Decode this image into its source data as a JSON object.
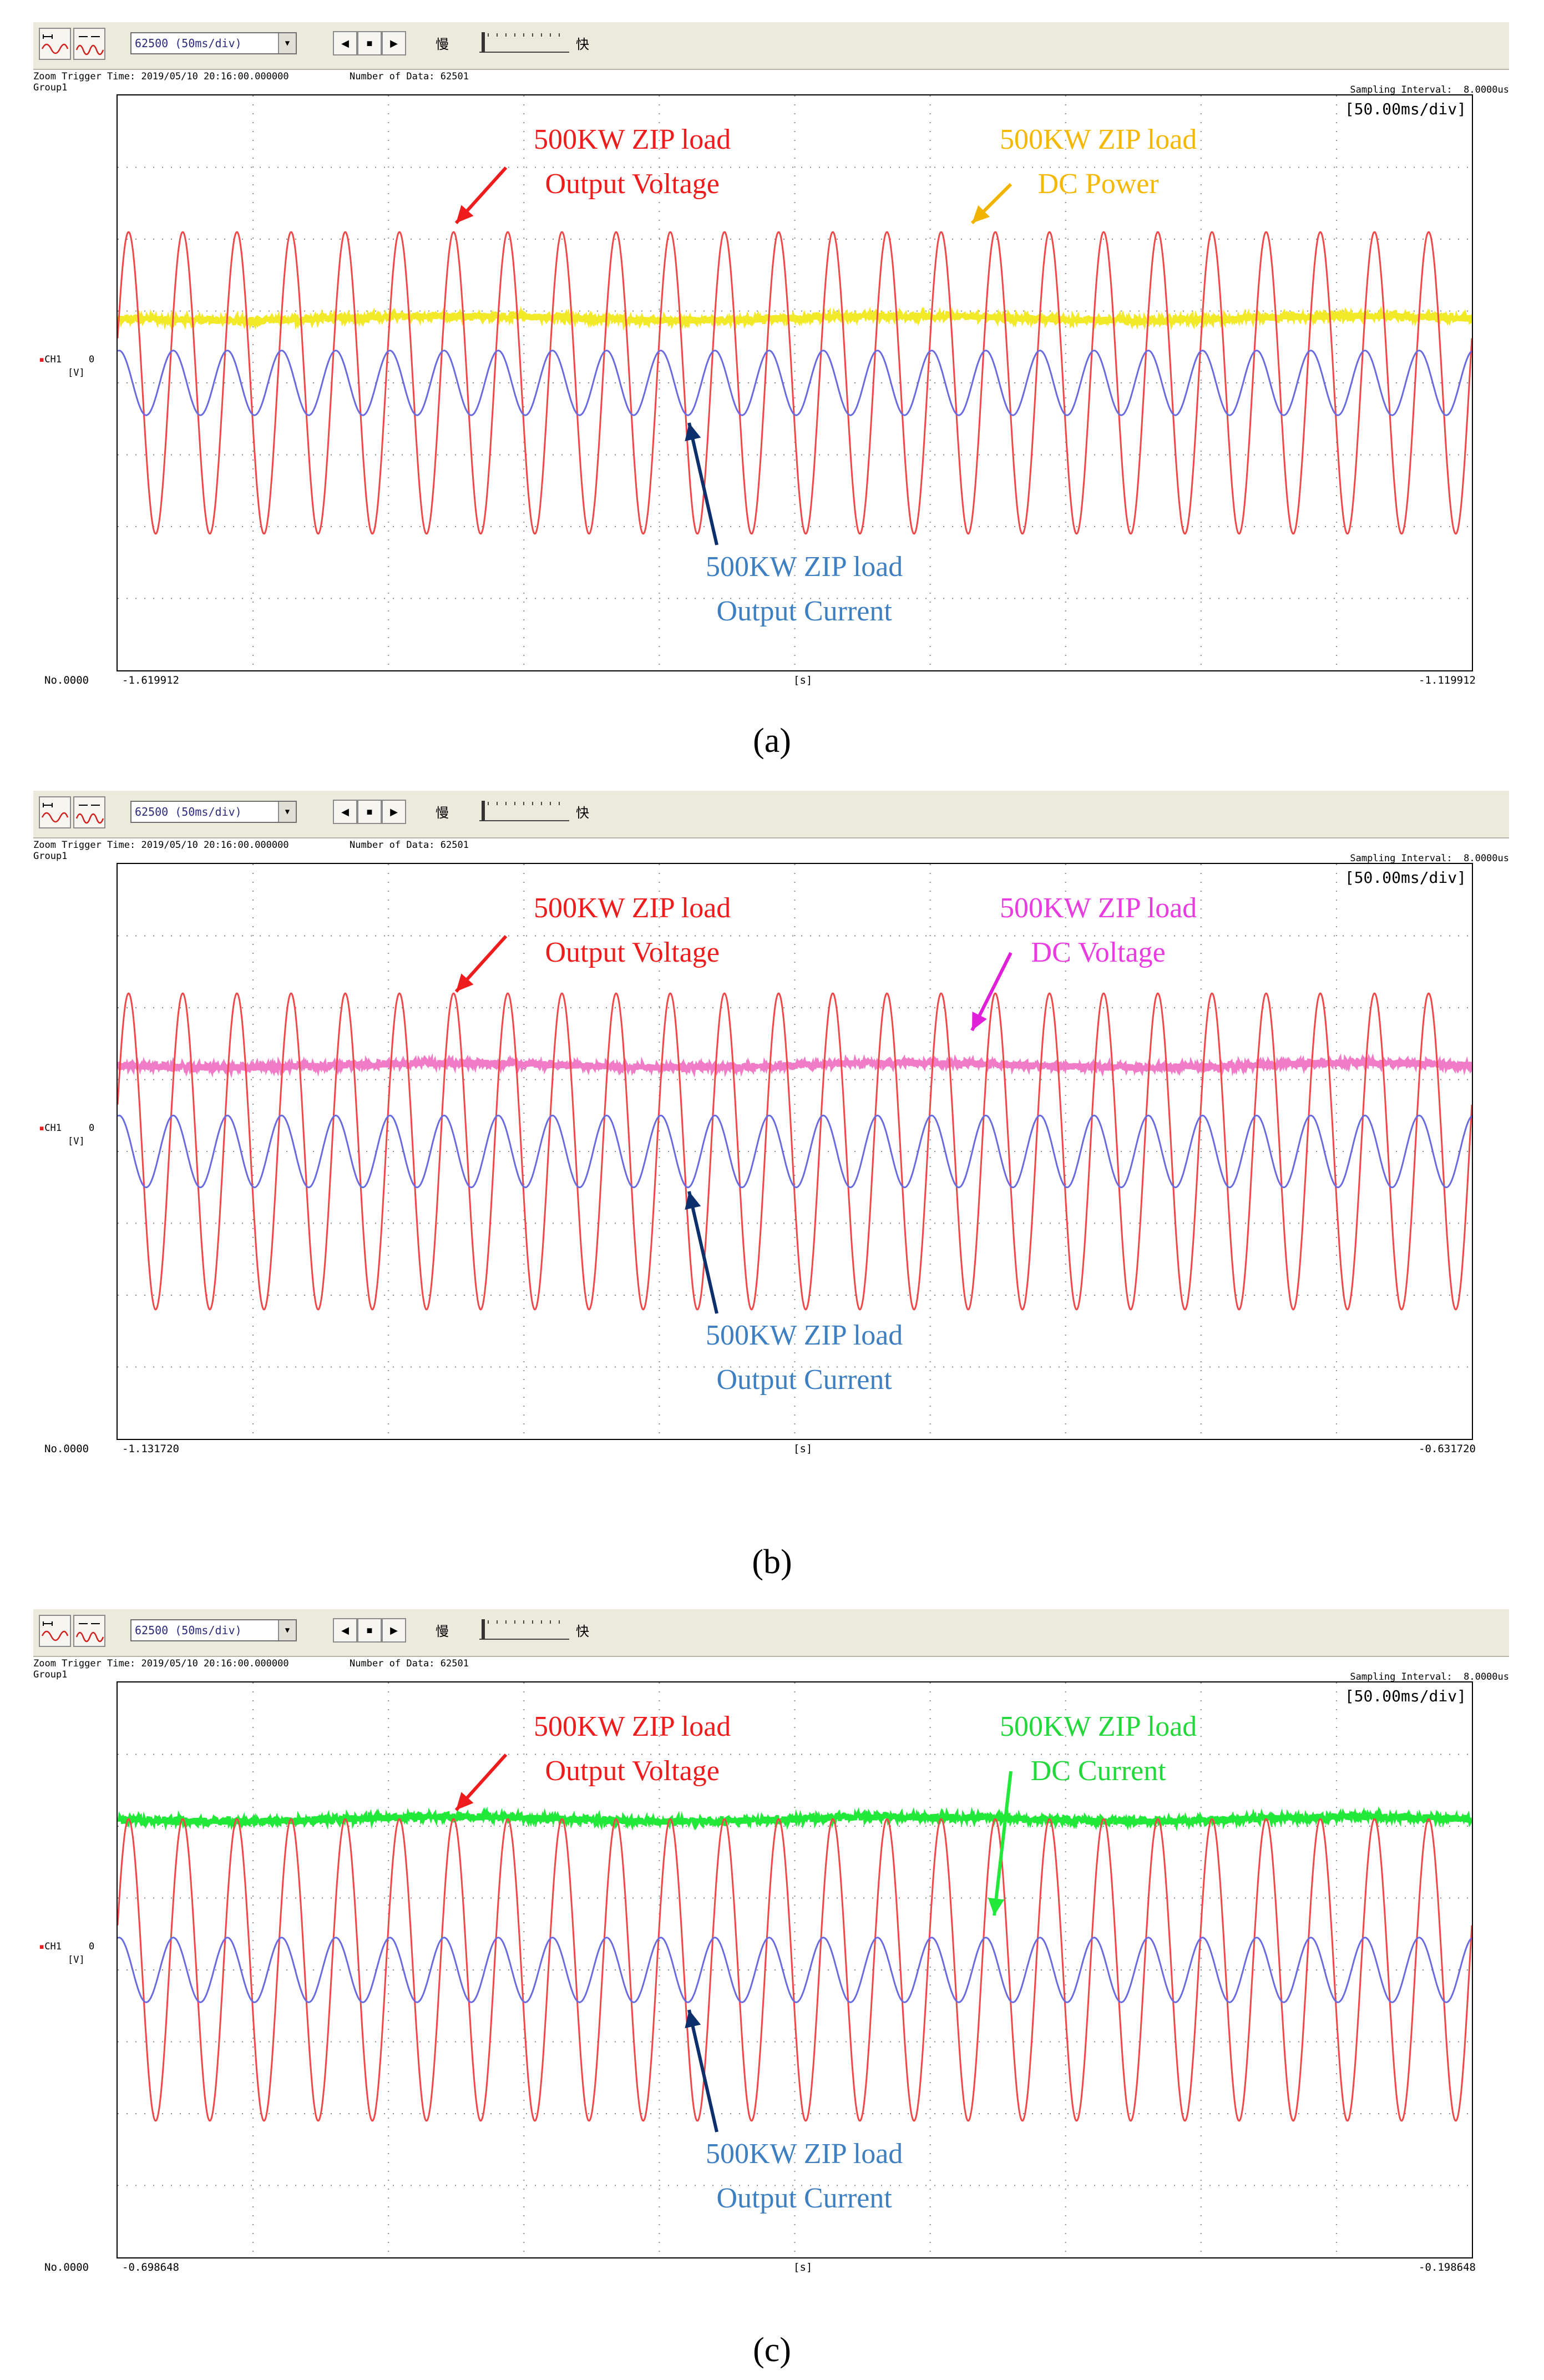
{
  "toolbar": {
    "samples_select": "62500 (50ms/div)",
    "slow_label": "慢",
    "fast_label": "快",
    "prev_icon": "triangle-left-icon",
    "stop_icon": "square-stop-icon",
    "next_icon": "triangle-right-icon"
  },
  "panels": [
    {
      "caption": "(a)",
      "zoom_trigger": "Zoom Trigger Time: 2019/05/10 20:16:00.000000",
      "number_of_data": "Number of Data: 62501",
      "group": "Group1",
      "sampling_interval": "Sampling Interval:  8.0000us",
      "scale": "[50.00ms/div]",
      "channel": "CH1",
      "unit": "[V]",
      "zero": "0",
      "record_no": "No.0000",
      "x_start": "-1.619912",
      "x_unit": "[s]",
      "x_end": "-1.119912",
      "dc_color": "#f2ea28",
      "dc_arrow_color": "#f0b400",
      "annotations": {
        "voltage_l1": "500KW ZIP load",
        "voltage_l2": "Output Voltage",
        "dc_l1": "500KW ZIP load",
        "dc_l2": "DC Power",
        "current_l1": "500KW ZIP load",
        "current_l2": "Output Current"
      }
    },
    {
      "caption": "(b)",
      "zoom_trigger": "Zoom Trigger Time: 2019/05/10 20:16:00.000000",
      "number_of_data": "Number of Data: 62501",
      "group": "Group1",
      "sampling_interval": "Sampling Interval:  8.0000us",
      "scale": "[50.00ms/div]",
      "channel": "CH1",
      "unit": "[V]",
      "zero": "0",
      "record_no": "No.0000",
      "x_start": "-1.131720",
      "x_unit": "[s]",
      "x_end": "-0.631720",
      "dc_color": "#f07cc8",
      "dc_arrow_color": "#e020d8",
      "annotations": {
        "voltage_l1": "500KW ZIP load",
        "voltage_l2": "Output Voltage",
        "dc_l1": "500KW ZIP load",
        "dc_l2": "DC Voltage",
        "current_l1": "500KW ZIP load",
        "current_l2": "Output Current"
      }
    },
    {
      "caption": "(c)",
      "zoom_trigger": "Zoom Trigger Time: 2019/05/10 20:16:00.000000",
      "number_of_data": "Number of Data: 62501",
      "group": "Group1",
      "sampling_interval": "Sampling Interval:  8.0000us",
      "scale": "[50.00ms/div]",
      "channel": "CH1",
      "unit": "[V]",
      "zero": "0",
      "record_no": "No.0000",
      "x_start": "-0.698648",
      "x_unit": "[s]",
      "x_end": "-0.198648",
      "dc_color": "#22e83a",
      "dc_arrow_color": "#22e83a",
      "annotations": {
        "voltage_l1": "500KW ZIP load",
        "voltage_l2": "Output Voltage",
        "dc_l1": "500KW ZIP load",
        "dc_l2": "DC Current",
        "current_l1": "500KW ZIP load",
        "current_l2": "Output Current"
      }
    }
  ],
  "colors": {
    "voltage": "#f04848",
    "current": "#6a6ae0",
    "voltage_text": "#ee1c1c",
    "current_text": "#3e7fc1",
    "current_arrow": "#0d2f6b",
    "dc_a_text": "#f5b800",
    "dc_b_text": "#e83ce0",
    "dc_c_text": "#22d83a"
  },
  "chart_data": [
    {
      "type": "line",
      "title": "(a)",
      "xlabel": "[s]",
      "ylabel": "[V]",
      "x_range": [
        -1.619912,
        -1.119912
      ],
      "x_division_s": 0.05,
      "cycles_in_window": 25,
      "series": [
        {
          "name": "500KW ZIP load Output Voltage",
          "type": "sine",
          "amplitude_div": 2.1,
          "offset_div": 0.0
        },
        {
          "name": "500KW ZIP load Output Current",
          "type": "sine",
          "amplitude_div": 0.45,
          "offset_div": 0.0
        },
        {
          "name": "500KW ZIP load DC Power",
          "type": "flat-noisy",
          "level_div": 0.9
        }
      ],
      "grid": true
    },
    {
      "type": "line",
      "title": "(b)",
      "xlabel": "[s]",
      "ylabel": "[V]",
      "x_range": [
        -1.13172,
        -0.63172
      ],
      "x_division_s": 0.05,
      "cycles_in_window": 25,
      "series": [
        {
          "name": "500KW ZIP load Output Voltage",
          "type": "sine",
          "amplitude_div": 2.2,
          "offset_div": 0.0
        },
        {
          "name": "500KW ZIP load Output Current",
          "type": "sine",
          "amplitude_div": 0.5,
          "offset_div": 0.0
        },
        {
          "name": "500KW ZIP load DC Voltage",
          "type": "flat-noisy",
          "level_div": 1.2
        }
      ],
      "grid": true
    },
    {
      "type": "line",
      "title": "(c)",
      "xlabel": "[s]",
      "ylabel": "[V]",
      "x_range": [
        -0.698648,
        -0.198648
      ],
      "x_division_s": 0.05,
      "cycles_in_window": 25,
      "series": [
        {
          "name": "500KW ZIP load Output Voltage",
          "type": "sine",
          "amplitude_div": 2.1,
          "offset_div": 0.0
        },
        {
          "name": "500KW ZIP load Output Current",
          "type": "sine",
          "amplitude_div": 0.45,
          "offset_div": 0.0
        },
        {
          "name": "500KW ZIP load DC Current",
          "type": "flat-noisy",
          "level_div": 2.1
        }
      ],
      "grid": true
    }
  ]
}
